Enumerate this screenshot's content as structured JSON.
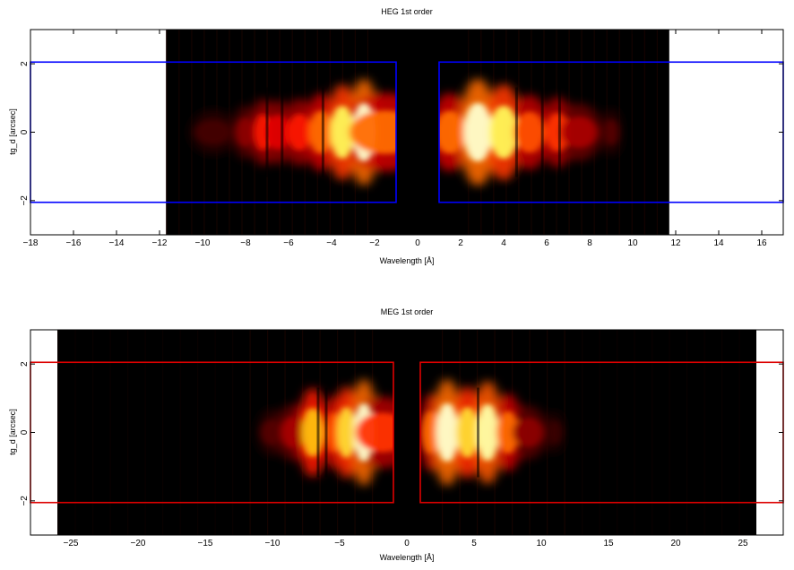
{
  "chart_data": [
    {
      "type": "heatmap",
      "title": "HEG 1st order",
      "xlabel": "Wavelength [Å]",
      "ylabel": "tg_d [arcsec]",
      "xlim": [
        -18,
        17
      ],
      "ylim": [
        -3,
        3
      ],
      "x_ticks": [
        -18,
        -16,
        -14,
        -12,
        -10,
        -8,
        -6,
        -4,
        -2,
        0,
        2,
        4,
        6,
        8,
        10,
        12,
        14,
        16
      ],
      "y_ticks": [
        -2,
        0,
        2
      ],
      "image_extent_x": [
        -11.7,
        11.7
      ],
      "image_extent_y": [
        -3,
        3
      ],
      "colormap": "hot",
      "region_color": "#0000ff",
      "regions": [
        {
          "x": [
            -18,
            -1
          ],
          "y": [
            -2.05,
            2.05
          ]
        },
        {
          "x": [
            1,
            17
          ],
          "y": [
            -2.05,
            2.05
          ]
        }
      ],
      "brightness_profile": [
        {
          "x": -9.5,
          "level": 0.12
        },
        {
          "x": -8.0,
          "level": 0.25
        },
        {
          "x": -7.2,
          "level": 0.45
        },
        {
          "x": -6.5,
          "level": 0.4
        },
        {
          "x": -5.5,
          "level": 0.45
        },
        {
          "x": -4.5,
          "level": 0.6
        },
        {
          "x": -3.5,
          "level": 0.85
        },
        {
          "x": -2.5,
          "level": 1.0
        },
        {
          "x": -1.5,
          "level": 0.6
        },
        {
          "x": 1.5,
          "level": 0.6
        },
        {
          "x": 2.8,
          "level": 1.0
        },
        {
          "x": 4.0,
          "level": 0.85
        },
        {
          "x": 5.2,
          "level": 0.55
        },
        {
          "x": 6.5,
          "level": 0.5
        },
        {
          "x": 7.5,
          "level": 0.3
        },
        {
          "x": 9.0,
          "level": 0.15
        }
      ],
      "dark_lines": [
        -7.0,
        -6.3,
        -4.4,
        4.6,
        5.8,
        6.6
      ]
    },
    {
      "type": "heatmap",
      "title": "MEG 1st order",
      "xlabel": "Wavelength [Å]",
      "ylabel": "tg_d [arcsec]",
      "xlim": [
        -28,
        28
      ],
      "ylim": [
        -3,
        3
      ],
      "x_ticks": [
        -25,
        -20,
        -15,
        -10,
        -5,
        0,
        5,
        10,
        15,
        20,
        25
      ],
      "y_ticks": [
        -2,
        0,
        2
      ],
      "image_extent_x": [
        -26,
        26
      ],
      "image_extent_y": [
        -3,
        3
      ],
      "colormap": "hot",
      "region_color": "#dd0000",
      "regions": [
        {
          "x": [
            -28,
            -1
          ],
          "y": [
            -2.05,
            2.05
          ]
        },
        {
          "x": [
            1,
            28
          ],
          "y": [
            -2.05,
            2.05
          ]
        }
      ],
      "brightness_profile": [
        {
          "x": -10,
          "level": 0.15
        },
        {
          "x": -8.5,
          "level": 0.3
        },
        {
          "x": -7.0,
          "level": 0.75
        },
        {
          "x": -5.5,
          "level": 0.55
        },
        {
          "x": -4.5,
          "level": 0.8
        },
        {
          "x": -3.2,
          "level": 1.0
        },
        {
          "x": -1.8,
          "level": 0.5
        },
        {
          "x": 1.8,
          "level": 0.6
        },
        {
          "x": 3.0,
          "level": 1.0
        },
        {
          "x": 4.5,
          "level": 0.8
        },
        {
          "x": 6.0,
          "level": 0.95
        },
        {
          "x": 7.5,
          "level": 0.6
        },
        {
          "x": 9.0,
          "level": 0.25
        },
        {
          "x": 11,
          "level": 0.1
        }
      ],
      "dark_lines": [
        -6.6,
        -6.0,
        5.3
      ]
    }
  ]
}
